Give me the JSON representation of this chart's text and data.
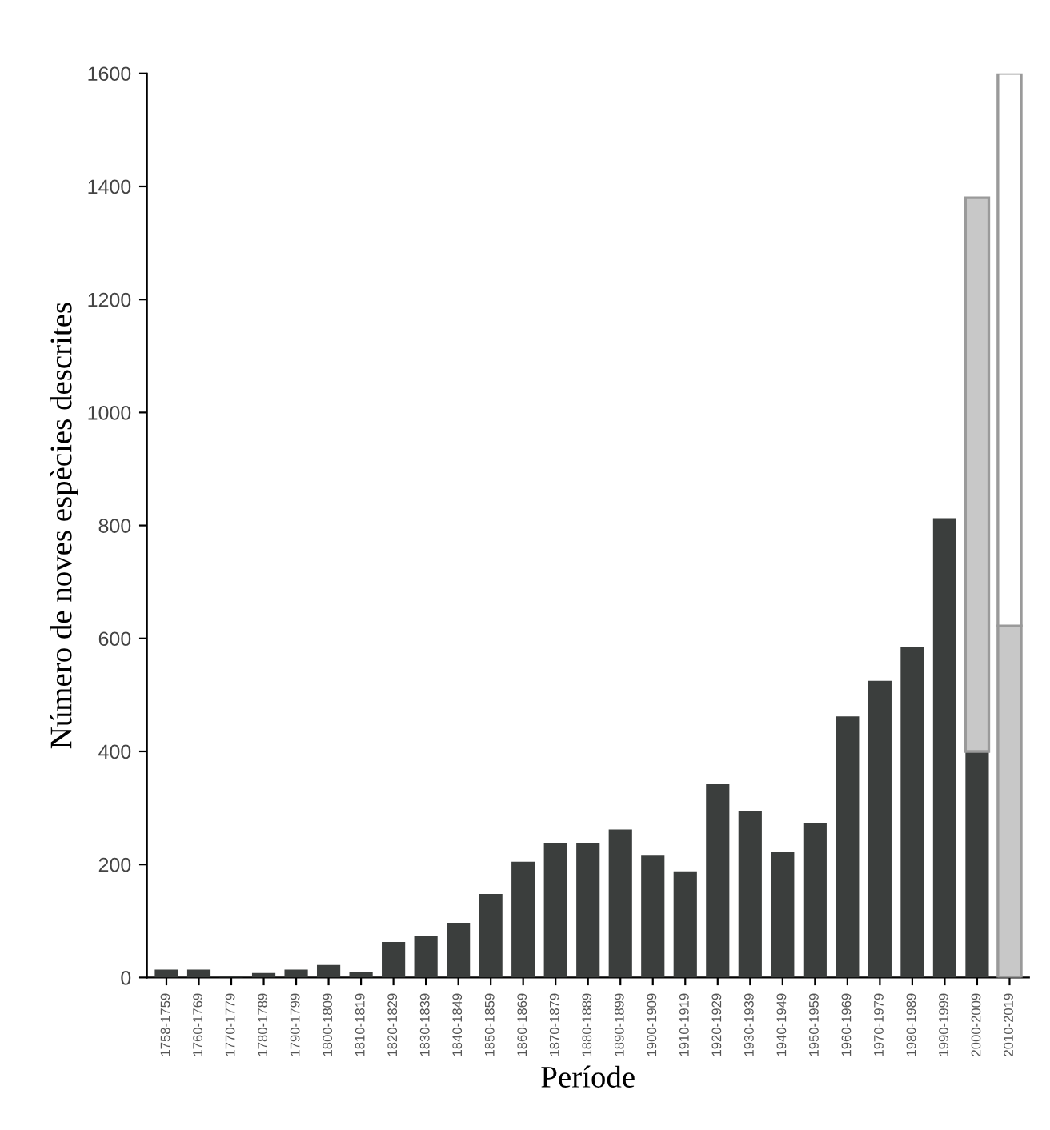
{
  "chart_data": {
    "type": "bar",
    "stacked": true,
    "xlabel": "Període",
    "ylabel": "Número de noves espècies descrites",
    "categories": [
      "1758-1759",
      "1760-1769",
      "1770-1779",
      "1780-1789",
      "1790-1799",
      "1800-1809",
      "1810-1819",
      "1820-1829",
      "1830-1839",
      "1840-1849",
      "1850-1859",
      "1860-1869",
      "1870-1879",
      "1880-1889",
      "1890-1899",
      "1900-1909",
      "1910-1919",
      "1920-1929",
      "1930-1939",
      "1940-1949",
      "1950-1959",
      "1960-1969",
      "1970-1979",
      "1980-1989",
      "1990-1999",
      "2000-2009",
      "2010-2019"
    ],
    "series": [
      {
        "color": "#3b3e3d",
        "values": [
          14,
          14,
          3,
          8,
          14,
          22,
          10,
          63,
          74,
          97,
          148,
          205,
          237,
          237,
          262,
          217,
          188,
          342,
          294,
          222,
          274,
          462,
          525,
          585,
          813,
          400,
          null
        ]
      },
      {
        "color": "#c8c8c8",
        "values": [
          null,
          null,
          null,
          null,
          null,
          null,
          null,
          null,
          null,
          null,
          null,
          null,
          null,
          null,
          null,
          null,
          null,
          null,
          null,
          null,
          null,
          null,
          null,
          null,
          null,
          980,
          622
        ]
      },
      {
        "color": "#ffffff",
        "values": [
          null,
          null,
          null,
          null,
          null,
          null,
          null,
          null,
          null,
          null,
          null,
          null,
          null,
          null,
          null,
          null,
          null,
          null,
          null,
          null,
          null,
          null,
          null,
          null,
          null,
          null,
          978
        ]
      }
    ],
    "ylim": [
      0,
      1600
    ],
    "yticks": [
      0,
      200,
      400,
      600,
      800,
      1000,
      1200,
      1400,
      1600
    ],
    "grid": false,
    "legend": false
  }
}
